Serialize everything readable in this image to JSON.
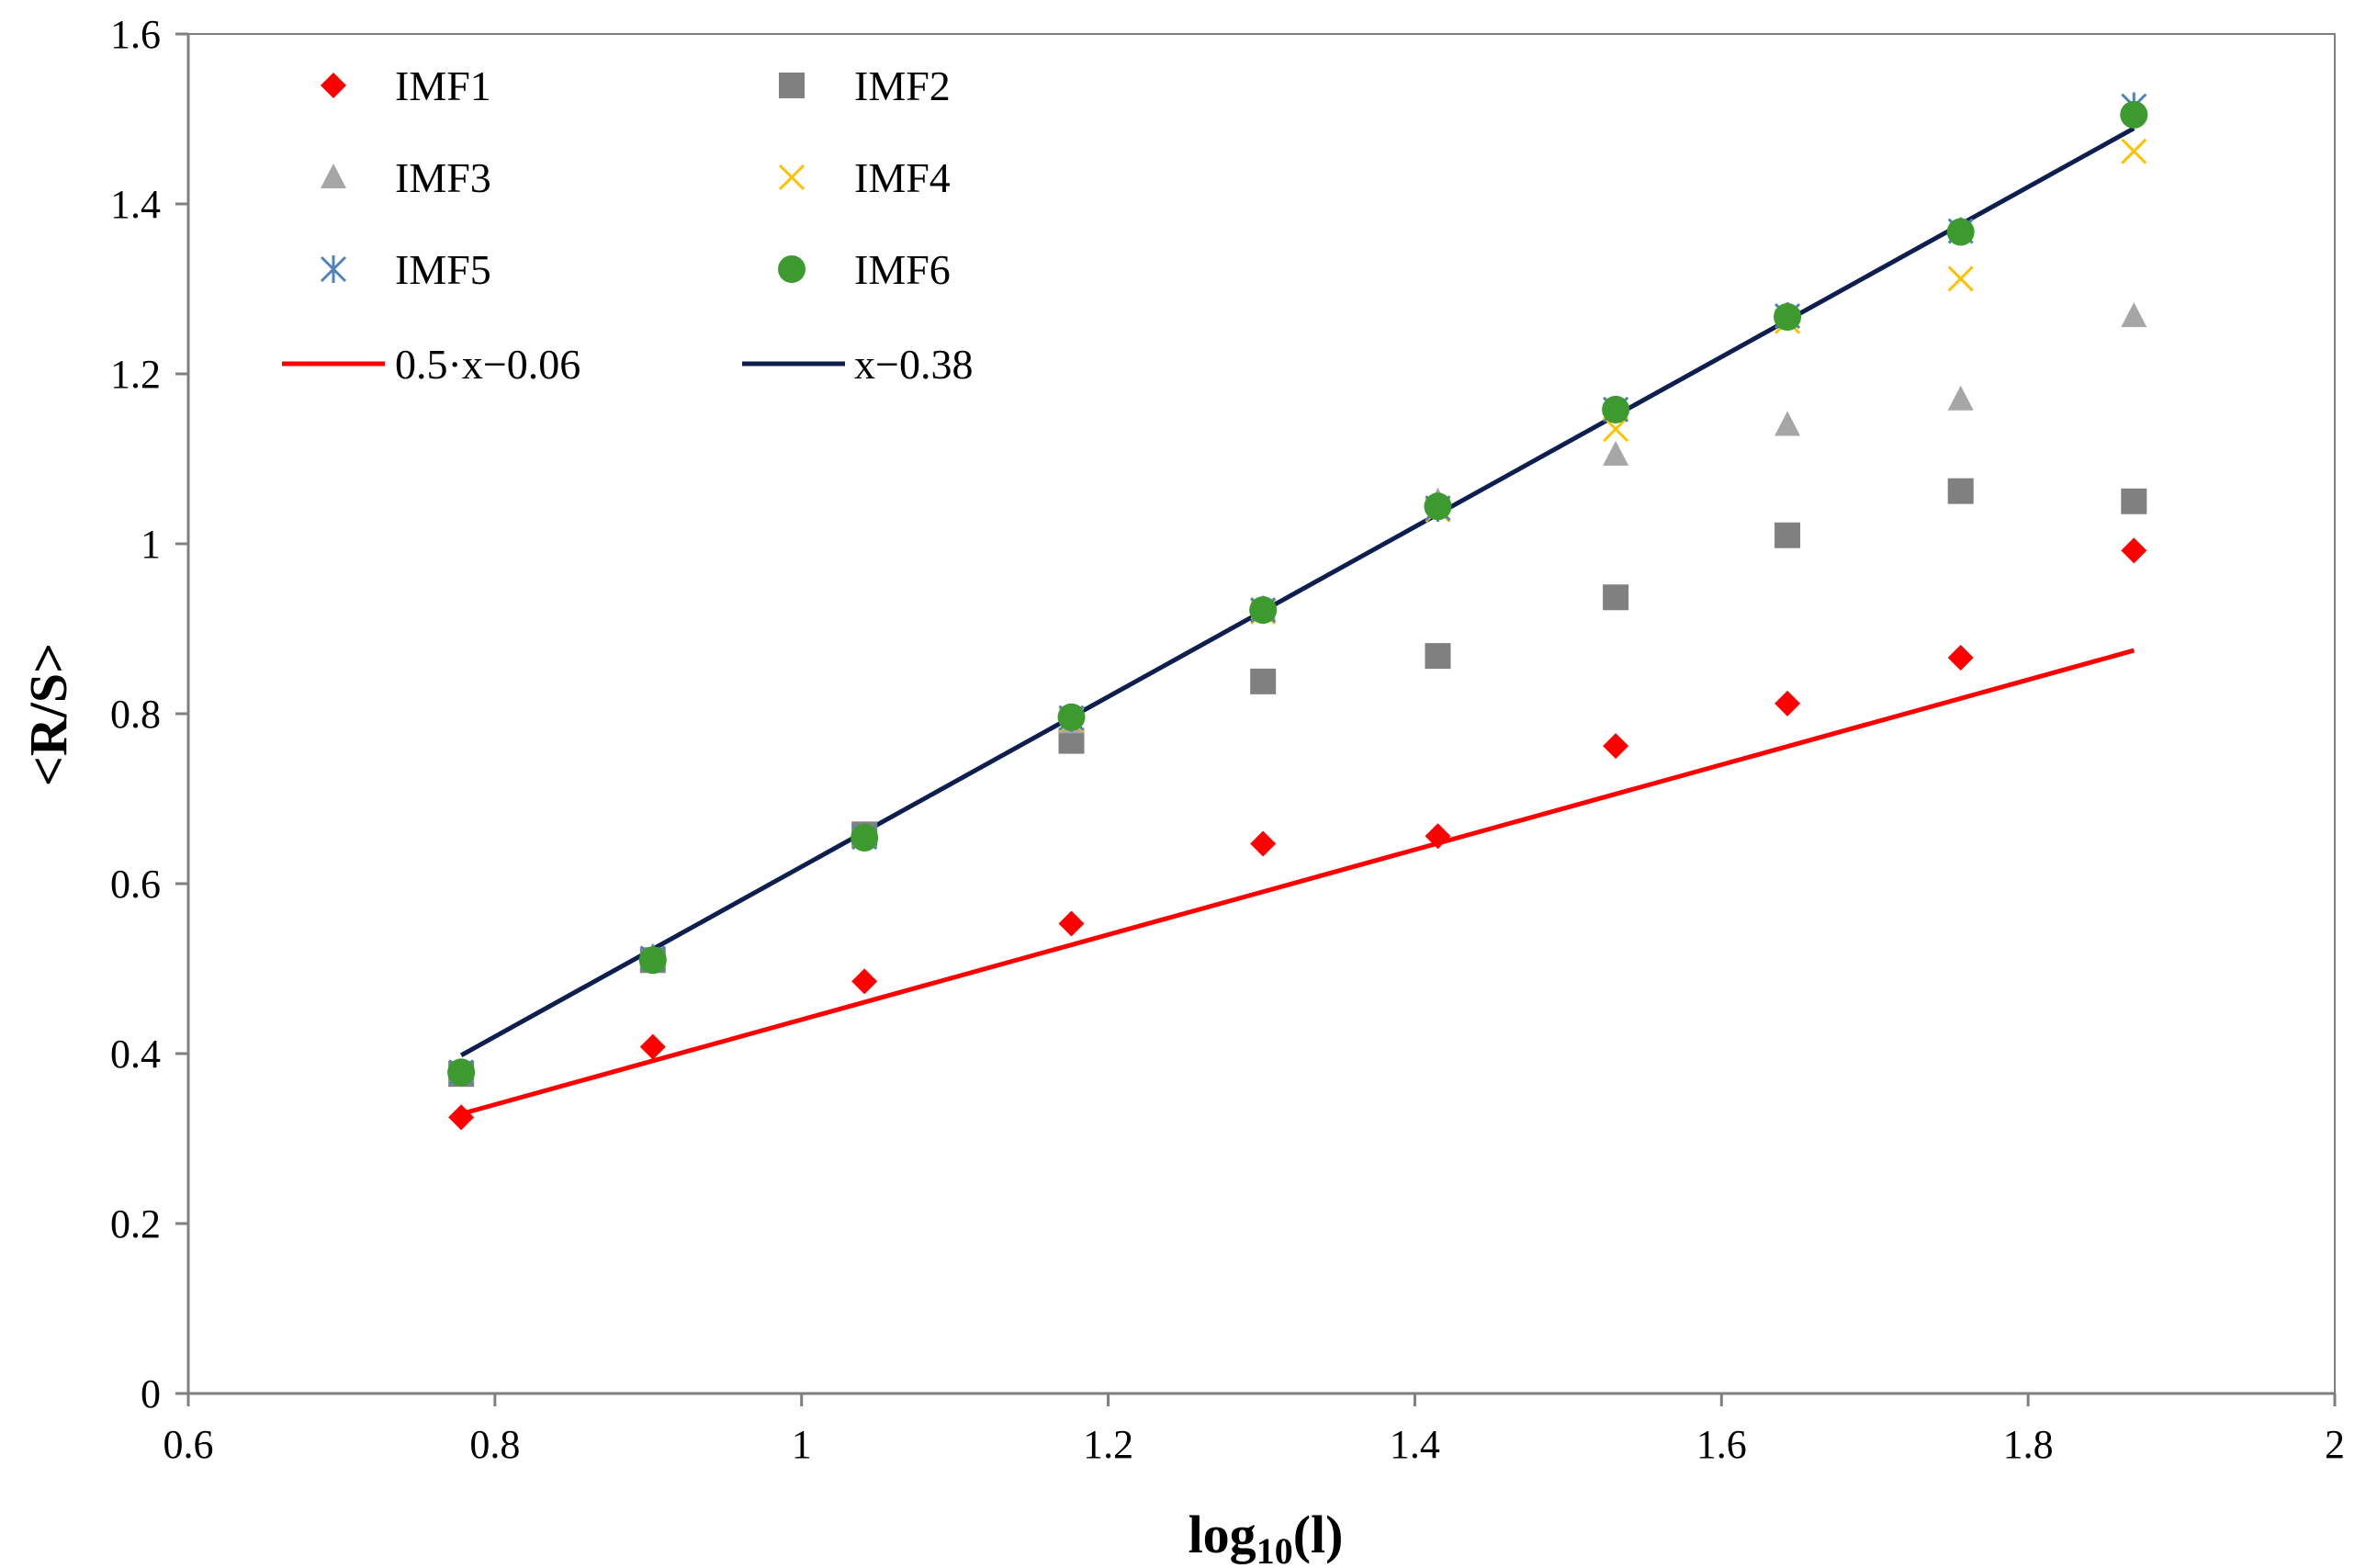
{
  "chart_data": {
    "type": "scatter",
    "title": "",
    "xlabel": {
      "base": "log",
      "subscript": "10",
      "suffix": "(l)"
    },
    "ylabel": "<R/S>",
    "xlim": [
      0.6,
      2.0
    ],
    "ylim": [
      0,
      1.6
    ],
    "xticks": [
      0.6,
      0.8,
      1.0,
      1.2,
      1.4,
      1.6,
      1.8,
      2.0
    ],
    "xtick_labels": [
      "0.6",
      "0.8",
      "1",
      "1.2",
      "1.4",
      "1.6",
      "1.8",
      "2"
    ],
    "yticks": [
      0,
      0.2,
      0.4,
      0.6,
      0.8,
      1.0,
      1.2,
      1.4,
      1.6
    ],
    "ytick_labels": [
      "0",
      "0.2",
      "0.4",
      "0.6",
      "0.8",
      "1",
      "1.2",
      "1.4",
      "1.6"
    ],
    "grid": false,
    "legend_position": "top-left",
    "x": [
      0.778,
      0.903,
      1.041,
      1.176,
      1.301,
      1.415,
      1.531,
      1.643,
      1.756,
      1.869
    ],
    "series": [
      {
        "name": "IMF1",
        "marker": "diamond",
        "color": "#ff0000",
        "values": [
          0.325,
          0.408,
          0.485,
          0.553,
          0.647,
          0.656,
          0.762,
          0.812,
          0.866,
          0.992
        ]
      },
      {
        "name": "IMF2",
        "marker": "square",
        "color": "#808080",
        "values": [
          0.376,
          0.51,
          0.658,
          0.768,
          0.838,
          0.868,
          0.937,
          1.01,
          1.062,
          1.05
        ]
      },
      {
        "name": "IMF3",
        "marker": "triangle",
        "color": "#a6a6a6",
        "values": [
          0.378,
          0.514,
          0.656,
          0.79,
          0.924,
          1.05,
          1.105,
          1.14,
          1.17,
          1.268
        ]
      },
      {
        "name": "IMF4",
        "marker": "x",
        "color": "#ffc000",
        "values": [
          0.378,
          0.512,
          0.655,
          0.793,
          0.92,
          1.04,
          1.135,
          1.262,
          1.312,
          1.462
        ]
      },
      {
        "name": "IMF5",
        "marker": "asterisk",
        "color": "#4f81bd",
        "values": [
          0.378,
          0.512,
          0.655,
          0.795,
          0.922,
          1.042,
          1.158,
          1.268,
          1.368,
          1.515
        ]
      },
      {
        "name": "IMF6",
        "marker": "circle",
        "color": "#3c9a2f",
        "values": [
          0.378,
          0.51,
          0.654,
          0.796,
          0.922,
          1.044,
          1.158,
          1.267,
          1.367,
          1.505
        ]
      }
    ],
    "fit_lines": [
      {
        "name": "0.5·x−0.06",
        "slope": 0.5,
        "intercept": -0.06,
        "x_range": [
          0.778,
          1.869
        ],
        "color": "#ff0000"
      },
      {
        "name": "x−0.38",
        "slope": 1.0,
        "intercept": -0.38,
        "x_range": [
          0.778,
          1.869
        ],
        "color": "#0d1f4f"
      }
    ]
  }
}
